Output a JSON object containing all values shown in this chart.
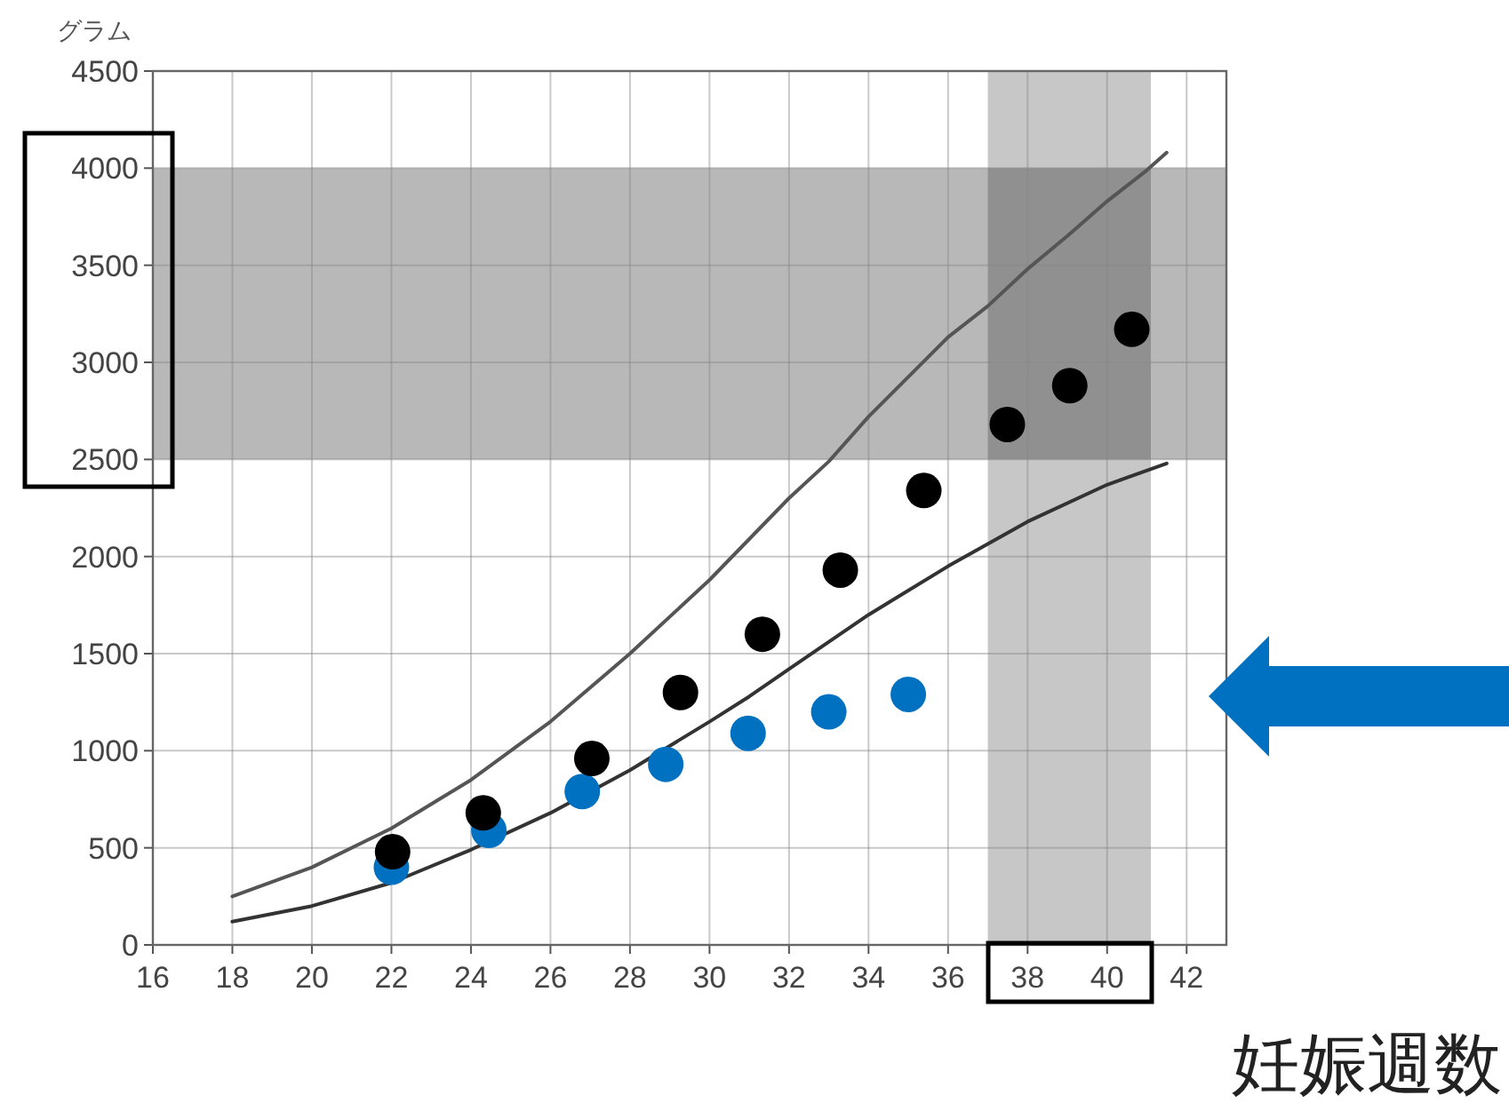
{
  "chart_data": {
    "type": "scatter",
    "xlabel": "妊娠週数",
    "ylabel": "グラム",
    "xlim": [
      16,
      43
    ],
    "ylim": [
      0,
      4500
    ],
    "xticks": [
      16,
      18,
      20,
      22,
      24,
      26,
      28,
      30,
      32,
      34,
      36,
      38,
      40,
      42
    ],
    "yticks": [
      0,
      500,
      1000,
      1500,
      2000,
      2500,
      3000,
      3500,
      4000,
      4500
    ],
    "grid": true,
    "bands": [
      {
        "axis": "y",
        "from": 2500,
        "to": 4000,
        "color": "#a0a0a0"
      },
      {
        "axis": "x",
        "from": 37,
        "to": 41.1,
        "color": "#b4b4b4"
      }
    ],
    "series": [
      {
        "type": "line",
        "color": "#555555",
        "x": [
          18,
          20,
          22,
          24,
          26,
          28,
          30,
          32,
          33,
          34,
          36,
          37,
          38,
          39,
          40,
          41,
          41.5
        ],
        "values": [
          250,
          400,
          600,
          850,
          1150,
          1500,
          1880,
          2300,
          2490,
          2720,
          3130,
          3290,
          3480,
          3650,
          3830,
          3990,
          4080
        ]
      },
      {
        "type": "line",
        "color": "#333333",
        "x": [
          18,
          20,
          22,
          24,
          26,
          28,
          30,
          31,
          32,
          34,
          36,
          38,
          40,
          41.5
        ],
        "values": [
          120,
          200,
          320,
          490,
          680,
          900,
          1150,
          1280,
          1420,
          1700,
          1950,
          2180,
          2370,
          2480
        ]
      },
      {
        "marker": "circle",
        "color": "#0070c0",
        "x": [
          22.0,
          24.45,
          26.8,
          28.9,
          30.97,
          33.0,
          35.0
        ],
        "values": [
          400,
          590,
          790,
          930,
          1090,
          1200,
          1290
        ]
      },
      {
        "marker": "circle",
        "color": "#000000",
        "x": [
          22.03,
          24.31,
          27.04,
          29.27,
          31.33,
          33.29,
          35.39,
          37.49,
          39.06,
          40.62
        ],
        "values": [
          480,
          680,
          960,
          1300,
          1600,
          1930,
          2340,
          2680,
          2880,
          3170
        ]
      }
    ]
  }
}
